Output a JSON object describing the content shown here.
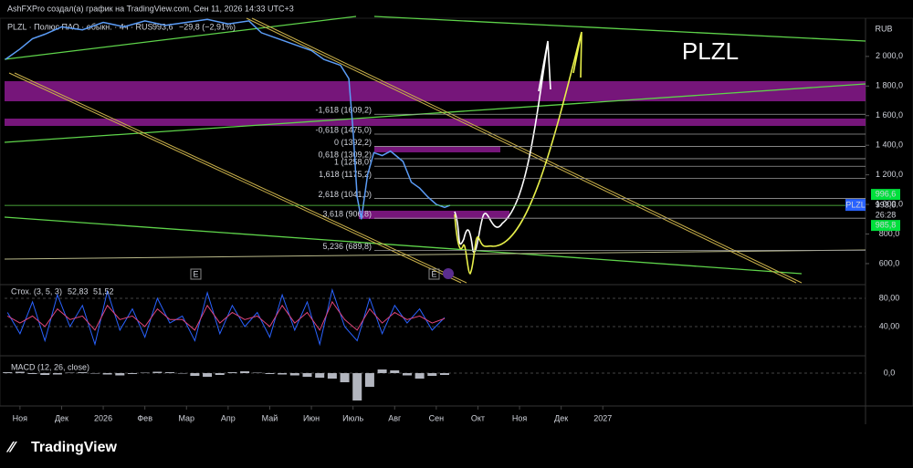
{
  "header": {
    "title": "AshFXPro создал(а) график на TradingView.com, Сен 11, 2026 14:33 UTC+3"
  },
  "footer": {
    "brand": "TradingView"
  },
  "chart_data": [
    {
      "type": "line",
      "symbol_line": "PLZL · Полюс ПАО · обыкн. · 4ч · RUS",
      "price_text": "993,6",
      "change_text": "−29,8 (−2,91%)",
      "annotation": "PLZL",
      "currency": "RUB",
      "x": [
        -0.35,
        0,
        0.3,
        0.6,
        1,
        1.5,
        2,
        2.5,
        3,
        3.5,
        4,
        4.5,
        5,
        5.5,
        5.8,
        6.2,
        6.6,
        7,
        7.3,
        7.7,
        7.9,
        8.0,
        8.1,
        8.2,
        8.35,
        8.5,
        8.7,
        8.9,
        9.2,
        9.4,
        9.6,
        9.8,
        10.0,
        10.2,
        10.33
      ],
      "series": [
        {
          "name": "PLZL",
          "color": "#5b9cf6",
          "values": [
            1980,
            2050,
            2120,
            2150,
            2200,
            2180,
            2230,
            2200,
            2240,
            2210,
            2230,
            2250,
            2220,
            2240,
            2160,
            2120,
            2080,
            2040,
            1980,
            1940,
            1850,
            1500,
            1050,
            900,
            1200,
            1350,
            1330,
            1360,
            1290,
            1150,
            1110,
            1050,
            1000,
            980,
            993.6
          ]
        }
      ],
      "last_price": {
        "value": 993.6,
        "label": "993,6"
      },
      "countdown": "26:28",
      "price_levels": [
        {
          "value": 996.6,
          "label": "996,6"
        },
        {
          "value": 985.8,
          "label": "985,8"
        }
      ],
      "fib_levels": [
        {
          "value": 1609.2,
          "label": "-1,618 (1609,2)"
        },
        {
          "value": 1475.0,
          "label": "-0,618 (1475,0)"
        },
        {
          "value": 1392.2,
          "label": "0 (1392,2)"
        },
        {
          "value": 1309.2,
          "label": "0,618 (1309,2)"
        },
        {
          "value": 1258.0,
          "label": "1 (1258,0)"
        },
        {
          "value": 1175.2,
          "label": "1,618 (1175,2)"
        },
        {
          "value": 1041.0,
          "label": "2,618 (1041,0)"
        },
        {
          "value": 906.8,
          "label": "3,618 (906,8)"
        },
        {
          "value": 689.8,
          "label": "5,236 (689,8)"
        }
      ],
      "xlim": [
        -0.37,
        20.31
      ],
      "xticks": [
        {
          "value": 0,
          "label": "Ноя"
        },
        {
          "value": 1,
          "label": "Дек"
        },
        {
          "value": 2,
          "label": "2026"
        },
        {
          "value": 3,
          "label": "Фев"
        },
        {
          "value": 4,
          "label": "Мар"
        },
        {
          "value": 5,
          "label": "Апр"
        },
        {
          "value": 6,
          "label": "Май"
        },
        {
          "value": 7,
          "label": "Июн"
        },
        {
          "value": 8,
          "label": "Июль"
        },
        {
          "value": 9,
          "label": "Авг"
        },
        {
          "value": 10,
          "label": "Сен"
        },
        {
          "value": 11,
          "label": "Окт"
        },
        {
          "value": 12,
          "label": "Ноя"
        },
        {
          "value": 13,
          "label": "Дек"
        },
        {
          "value": 14,
          "label": "2027"
        }
      ],
      "ylim": [
        458,
        2258
      ],
      "yticks": [
        {
          "value": 600,
          "label": "600,0"
        },
        {
          "value": 800,
          "label": "800,0"
        },
        {
          "value": 1000,
          "label": "1 000,0"
        },
        {
          "value": 1200,
          "label": "1 200,0"
        },
        {
          "value": 1400,
          "label": "1 400,0"
        },
        {
          "value": 1600,
          "label": "1 600,0"
        },
        {
          "value": 1800,
          "label": "1 800,0"
        },
        {
          "value": 2000,
          "label": "2 000,0"
        }
      ]
    },
    {
      "type": "line",
      "title": "Стох. (3, 5, 3)",
      "x": [
        -0.3,
        0,
        0.3,
        0.6,
        0.9,
        1.2,
        1.5,
        1.8,
        2.1,
        2.4,
        2.7,
        3.0,
        3.3,
        3.6,
        3.9,
        4.2,
        4.5,
        4.8,
        5.1,
        5.4,
        5.7,
        6.0,
        6.3,
        6.6,
        6.9,
        7.2,
        7.5,
        7.8,
        8.1,
        8.4,
        8.7,
        9.0,
        9.3,
        9.6,
        9.9,
        10.2
      ],
      "series": [
        {
          "name": "%K",
          "color": "#2962ff",
          "values": [
            60,
            30,
            75,
            20,
            85,
            40,
            70,
            15,
            90,
            35,
            65,
            25,
            80,
            45,
            55,
            20,
            88,
            30,
            70,
            40,
            60,
            25,
            85,
            35,
            75,
            15,
            92,
            40,
            20,
            80,
            30,
            70,
            45,
            65,
            35,
            52.83
          ],
          "value_labels": [
            null,
            null,
            null,
            null,
            null,
            null,
            null,
            null,
            null,
            null,
            null,
            null,
            null,
            null,
            null,
            null,
            null,
            null,
            null,
            null,
            null,
            null,
            null,
            null,
            null,
            null,
            null,
            null,
            null,
            null,
            null,
            null,
            null,
            null,
            null,
            "52,83"
          ]
        },
        {
          "name": "%D",
          "color": "#e0457b",
          "values": [
            55,
            45,
            55,
            40,
            65,
            50,
            55,
            35,
            70,
            50,
            55,
            40,
            65,
            50,
            50,
            35,
            70,
            45,
            60,
            50,
            55,
            40,
            70,
            45,
            60,
            35,
            75,
            50,
            35,
            65,
            45,
            60,
            50,
            55,
            45,
            51.52
          ],
          "value_labels": [
            null,
            null,
            null,
            null,
            null,
            null,
            null,
            null,
            null,
            null,
            null,
            null,
            null,
            null,
            null,
            null,
            null,
            null,
            null,
            null,
            null,
            null,
            null,
            null,
            null,
            null,
            null,
            null,
            null,
            null,
            null,
            null,
            null,
            null,
            null,
            "51,52"
          ]
        }
      ],
      "ylim": [
        -1.3,
        99.4
      ],
      "yticks": [
        {
          "value": 40,
          "label": "40,00"
        },
        {
          "value": 80,
          "label": "80,00"
        }
      ]
    },
    {
      "type": "bar",
      "title": "MACD (12, 26, close)",
      "x": [
        -0.3,
        0,
        0.3,
        0.6,
        0.9,
        1.2,
        1.5,
        1.8,
        2.1,
        2.4,
        2.7,
        3.0,
        3.3,
        3.6,
        3.9,
        4.2,
        4.5,
        4.8,
        5.1,
        5.4,
        5.7,
        6.0,
        6.3,
        6.6,
        6.9,
        7.2,
        7.5,
        7.8,
        8.1,
        8.4,
        8.7,
        9.0,
        9.3,
        9.6,
        9.9,
        10.2
      ],
      "color": "#b2b5be",
      "values": [
        2,
        3,
        -2,
        -4,
        -3,
        1,
        2,
        -1,
        -3,
        -5,
        -2,
        1,
        3,
        2,
        -1,
        -6,
        -8,
        -4,
        2,
        4,
        1,
        -2,
        -3,
        -5,
        -8,
        -10,
        -12,
        -20,
        -60,
        -30,
        8,
        6,
        -5,
        -12,
        -6,
        -4
      ],
      "ylim": [
        -72,
        38
      ],
      "yticks": [
        {
          "value": 0,
          "label": "0,0"
        }
      ]
    }
  ]
}
